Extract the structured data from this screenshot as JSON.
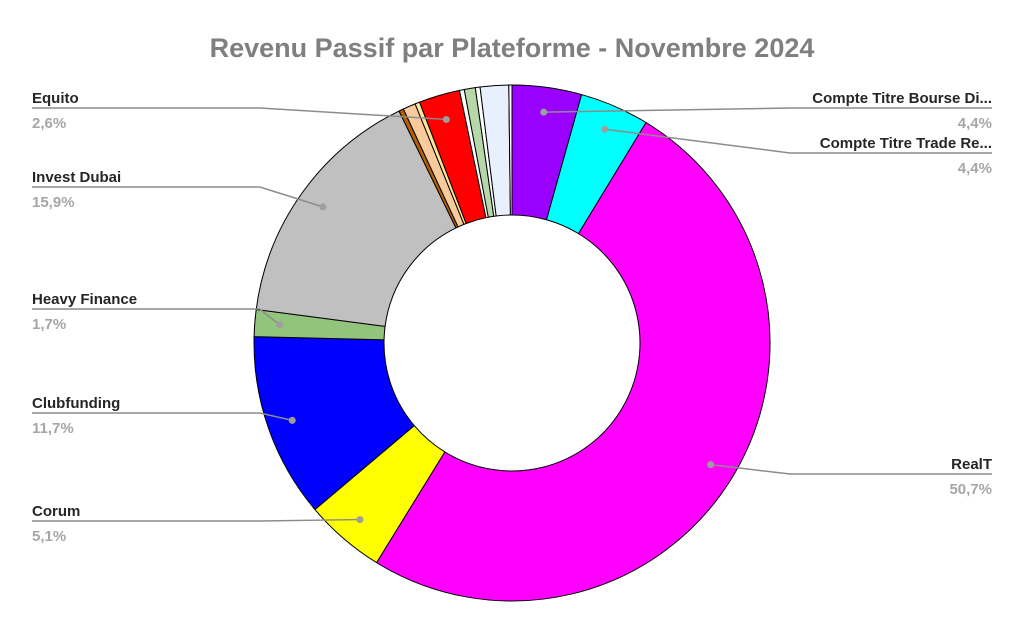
{
  "chart_data": {
    "type": "pie",
    "donut": true,
    "title": "Revenu Passif par Plateforme - Novembre 2024",
    "start_angle_deg": 0,
    "series": [
      {
        "name": "Compte Titre Bourse Di...",
        "pct_label": "4,4%",
        "value": 4.4,
        "color": "#9900ff",
        "labeled": true,
        "side": "right"
      },
      {
        "name": "Compte Titre Trade Re...",
        "pct_label": "4,4%",
        "value": 4.4,
        "color": "#00ffff",
        "labeled": true,
        "side": "right"
      },
      {
        "name": "RealT",
        "pct_label": "50,7%",
        "value": 50.7,
        "color": "#ff00ff",
        "labeled": true,
        "side": "right"
      },
      {
        "name": "Corum",
        "pct_label": "5,1%",
        "value": 5.1,
        "color": "#ffff00",
        "labeled": true,
        "side": "left"
      },
      {
        "name": "Clubfunding",
        "pct_label": "11,7%",
        "value": 11.7,
        "color": "#0000ff",
        "labeled": true,
        "side": "left"
      },
      {
        "name": "Heavy Finance",
        "pct_label": "1,7%",
        "value": 1.7,
        "color": "#93c47d",
        "labeled": true,
        "side": "left"
      },
      {
        "name": "Invest Dubai",
        "pct_label": "15,9%",
        "value": 15.9,
        "color": "#c0c0c0",
        "labeled": true,
        "side": "left"
      },
      {
        "name": "",
        "pct_label": "",
        "value": 0.3,
        "color": "#b45f06",
        "labeled": false
      },
      {
        "name": "",
        "pct_label": "",
        "value": 0.8,
        "color": "#f9cb9c",
        "labeled": false
      },
      {
        "name": "",
        "pct_label": "",
        "value": 0.3,
        "color": "#ffe599",
        "labeled": false
      },
      {
        "name": "Equito",
        "pct_label": "2,6%",
        "value": 2.6,
        "color": "#ff0000",
        "labeled": true,
        "side": "left"
      },
      {
        "name": "",
        "pct_label": "",
        "value": 0.3,
        "color": "#ffffff",
        "labeled": false
      },
      {
        "name": "",
        "pct_label": "",
        "value": 0.7,
        "color": "#b6d7a8",
        "labeled": false
      },
      {
        "name": "",
        "pct_label": "",
        "value": 0.3,
        "color": "#ffffff",
        "labeled": false
      },
      {
        "name": "",
        "pct_label": "",
        "value": 1.8,
        "color": "#e8f0fe",
        "labeled": false
      },
      {
        "name": "",
        "pct_label": "",
        "value": 0.2,
        "color": "#ffffff",
        "labeled": false
      }
    ]
  }
}
